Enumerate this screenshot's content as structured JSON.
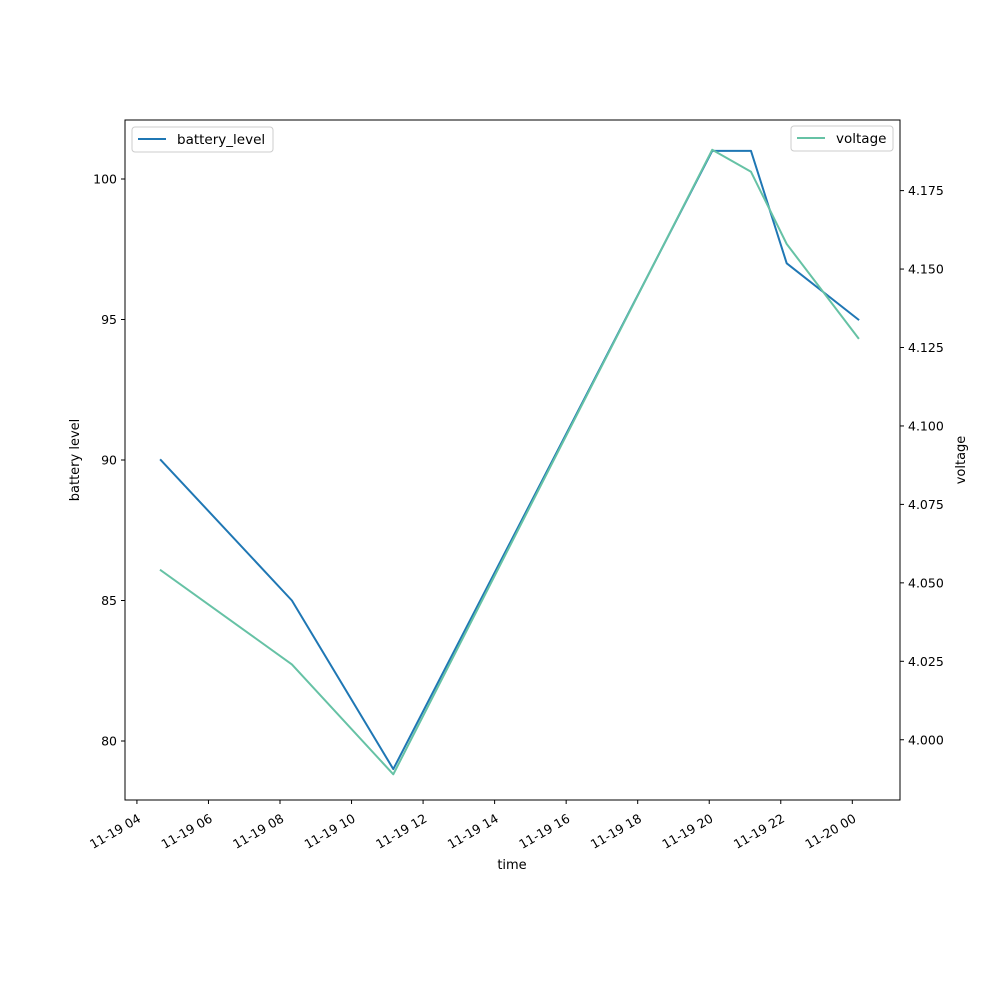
{
  "chart_data": {
    "type": "line",
    "xlabel": "time",
    "ylabel_left": "battery level",
    "ylabel_right": "voltage",
    "x_range": [
      "2018-11-19T03:40",
      "2018-11-20T01:20"
    ],
    "x_ticks": [
      {
        "t": "2018-11-19T04:00",
        "label": "11-19 04"
      },
      {
        "t": "2018-11-19T06:00",
        "label": "11-19 06"
      },
      {
        "t": "2018-11-19T08:00",
        "label": "11-19 08"
      },
      {
        "t": "2018-11-19T10:00",
        "label": "11-19 10"
      },
      {
        "t": "2018-11-19T12:00",
        "label": "11-19 12"
      },
      {
        "t": "2018-11-19T14:00",
        "label": "11-19 14"
      },
      {
        "t": "2018-11-19T16:00",
        "label": "11-19 16"
      },
      {
        "t": "2018-11-19T18:00",
        "label": "11-19 18"
      },
      {
        "t": "2018-11-19T20:00",
        "label": "11-19 20"
      },
      {
        "t": "2018-11-19T22:00",
        "label": "11-19 22"
      },
      {
        "t": "2018-11-20T00:00",
        "label": "11-20 00"
      }
    ],
    "ylim_left": [
      77.9,
      102.1
    ],
    "y_ticks_left": [
      80,
      85,
      90,
      95,
      100
    ],
    "ylim_right": [
      3.9808,
      4.1975
    ],
    "y_ticks_right": [
      4.0,
      4.025,
      4.05,
      4.075,
      4.1,
      4.125,
      4.15,
      4.175
    ],
    "series": [
      {
        "name": "battery_level",
        "axis": "left",
        "color": "#1f77b4",
        "x": [
          "2018-11-19T04:40",
          "2018-11-19T08:20",
          "2018-11-19T11:10",
          "2018-11-19T20:05",
          "2018-11-19T21:10",
          "2018-11-19T22:10",
          "2018-11-20T00:10"
        ],
        "y": [
          90,
          85,
          79,
          101,
          101,
          97,
          95
        ]
      },
      {
        "name": "voltage",
        "axis": "right",
        "color": "#66c2a5",
        "x": [
          "2018-11-19T04:40",
          "2018-11-19T08:20",
          "2018-11-19T11:10",
          "2018-11-19T20:05",
          "2018-11-19T21:10",
          "2018-11-19T22:10",
          "2018-11-20T00:10"
        ],
        "y": [
          4.054,
          4.024,
          3.989,
          4.188,
          4.181,
          4.158,
          4.128
        ]
      }
    ],
    "legends": [
      "top-left",
      "top-right"
    ]
  }
}
